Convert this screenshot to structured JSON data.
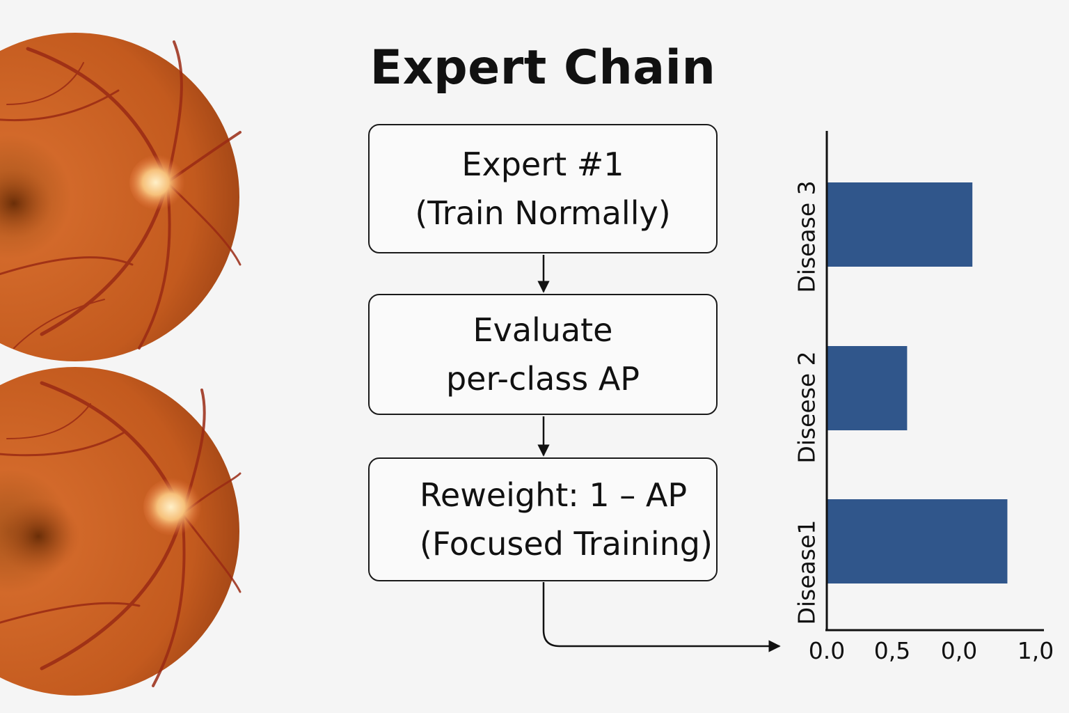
{
  "title": "Expert Chain",
  "steps": [
    {
      "line1": "Expert #1",
      "line2": "(Train Normally)"
    },
    {
      "line1": "Evaluate",
      "line2": "per-class AP"
    },
    {
      "line1": "Reweight: 1 – AP",
      "line2": "(Focused Training)"
    }
  ],
  "images": [
    {
      "name": "retina-fundus-image-top"
    },
    {
      "name": "retina-fundus-image-bottom"
    }
  ],
  "colors": {
    "bar": "#30568b",
    "fundus": "#c85a1c",
    "fundus_edge": "#8a3a12",
    "vessel": "#9a2a14",
    "disc": "#f6c07a"
  },
  "chart_data": {
    "type": "bar",
    "orientation": "horizontal",
    "categories": [
      "Disease 3",
      "Diseese 2",
      "Disease1"
    ],
    "values": [
      0.62,
      0.34,
      0.77
    ],
    "xticks": [
      "0.0",
      "0,5",
      "0,0",
      "1,0"
    ],
    "xlim": [
      0,
      1.0
    ],
    "title": "",
    "xlabel": "",
    "ylabel": ""
  }
}
